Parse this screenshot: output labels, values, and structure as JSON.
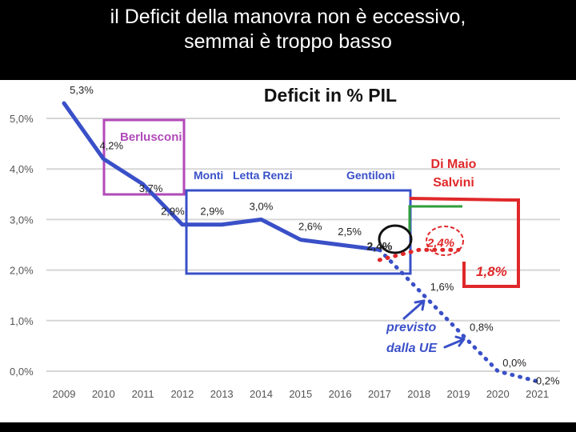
{
  "slide": {
    "title_line1": "il Deficit della manovra non è eccessivo,",
    "title_line2": "semmai è troppo basso"
  },
  "chart_data": {
    "type": "line",
    "title": "Deficit in % PIL",
    "xlabel": "",
    "ylabel": "",
    "ylim": [
      0,
      5
    ],
    "yticks": [
      "0,0%",
      "1,0%",
      "2,0%",
      "3,0%",
      "4,0%",
      "5,0%"
    ],
    "categories": [
      "2009",
      "2010",
      "2011",
      "2012",
      "2013",
      "2014",
      "2015",
      "2016",
      "2017",
      "2018",
      "2019",
      "2020",
      "2021"
    ],
    "series": [
      {
        "x": [
          2009,
          2010,
          2011,
          2012,
          2013,
          2014,
          2015,
          2016,
          2017
        ],
        "values": [
          5.3,
          4.2,
          3.7,
          2.9,
          2.9,
          3.0,
          2.6,
          2.5,
          2.4
        ],
        "labels": [
          "5,3%",
          "4,2%",
          "3,7%",
          "2,9%",
          "2,9%",
          "3,0%",
          "2,6%",
          "2,5%",
          "2,4%"
        ],
        "style": "solid",
        "color": "#3a50c8"
      },
      {
        "x": [
          2017,
          2018,
          2019,
          2020,
          2021
        ],
        "values": [
          2.4,
          1.6,
          0.8,
          0.0,
          -0.2
        ],
        "labels": [
          "1,6%",
          "0,8%",
          "0,0%",
          "-0,2%"
        ],
        "style": "dotted",
        "color": "#3a50c8"
      },
      {
        "x": [
          2017,
          2018,
          2019
        ],
        "values": [
          2.2,
          2.4,
          2.4
        ],
        "labels": [
          "2,4%"
        ],
        "style": "dotted",
        "color": "#e0282a"
      }
    ],
    "annotations": {
      "berlusconi": "Berlusconi",
      "monti": "Monti",
      "letta_renzi": "Letta Renzi",
      "gentiloni": "Gentiloni",
      "dimaio_line1": "Di Maio",
      "dimaio_line2": "Salvini",
      "red_value": "1,8%",
      "previsto_line1": "previsto",
      "previsto_line2": "dalla UE"
    },
    "colors": {
      "line": "#3a50c8",
      "berlusconi_box": "#b04ab8",
      "red": "#e0282a",
      "green": "#2e9e3c",
      "grid": "#d6d6d6"
    },
    "grid": true
  }
}
